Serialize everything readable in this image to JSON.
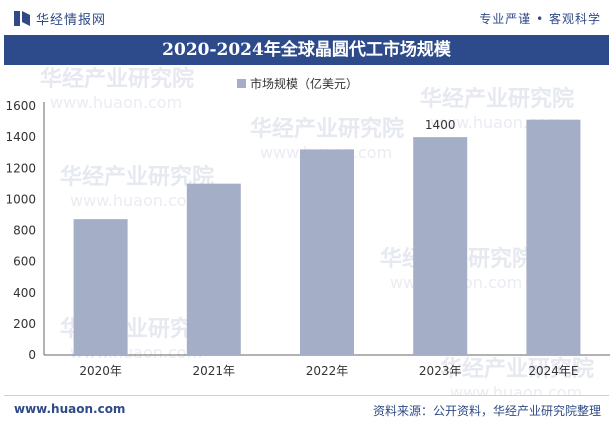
{
  "header": {
    "brand_name": "华经情报网",
    "tagline": "专业严谨 • 客观科学"
  },
  "title_text": "2020-2024年全球晶圆代工市场规模",
  "watermarks": [
    "华经产业研究院",
    "www.huaon.com"
  ],
  "footer": {
    "website": "www.huaon.com",
    "source": "资料来源：公开资料，华经产业研究院整理"
  },
  "colors": {
    "bar": "#a4aec6",
    "title_bg": "#2d4a8b",
    "brand": "#2f4a86"
  },
  "chart_data": {
    "type": "bar",
    "title": "2020-2024年全球晶圆代工市场规模",
    "categories": [
      "2020年",
      "2021年",
      "2022年",
      "2023年",
      "2024年E"
    ],
    "series": [
      {
        "name": "市场规模（亿美元）",
        "values": [
          873,
          1101,
          1321,
          1400,
          1512
        ]
      }
    ],
    "data_labels": [
      null,
      null,
      null,
      "1400",
      null
    ],
    "y_ticks": [
      "0",
      "200",
      "400",
      "600",
      "800",
      "1000",
      "1200",
      "1400",
      "1600"
    ],
    "ylim": [
      0,
      1600
    ],
    "xlabel": "",
    "ylabel": "",
    "legend_position": "top-center",
    "grid": false
  }
}
